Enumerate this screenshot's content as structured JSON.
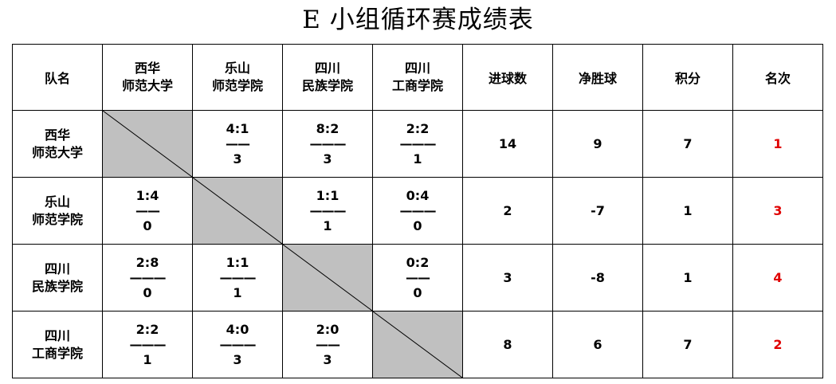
{
  "title": "E 小组循环赛成绩表",
  "header": {
    "team_label": "队名",
    "teams": [
      {
        "line1": "西华",
        "line2": "师范大学"
      },
      {
        "line1": "乐山",
        "line2": "师范学院"
      },
      {
        "line1": "四川",
        "line2": "民族学院"
      },
      {
        "line1": "四川",
        "line2": "工商学院"
      }
    ],
    "goals": "进球数",
    "net": "净胜球",
    "points": "积分",
    "rank": "名次"
  },
  "rows": [
    {
      "team": {
        "line1": "西华",
        "line2": "师范大学"
      },
      "results": [
        null,
        {
          "score": "4:1",
          "dash": "——",
          "pts": "3"
        },
        {
          "score": "8:2",
          "dash": "———",
          "pts": "3"
        },
        {
          "score": "2:2",
          "dash": "———",
          "pts": "1"
        }
      ],
      "goals": "14",
      "net": "9",
      "points": "7",
      "rank": "1"
    },
    {
      "team": {
        "line1": "乐山",
        "line2": "师范学院"
      },
      "results": [
        {
          "score": "1:4",
          "dash": "——",
          "pts": "0"
        },
        null,
        {
          "score": "1:1",
          "dash": "———",
          "pts": "1"
        },
        {
          "score": "0:4",
          "dash": "———",
          "pts": "0"
        }
      ],
      "goals": "2",
      "net": "-7",
      "points": "1",
      "rank": "3"
    },
    {
      "team": {
        "line1": "四川",
        "line2": "民族学院"
      },
      "results": [
        {
          "score": "2:8",
          "dash": "———",
          "pts": "0"
        },
        {
          "score": "1:1",
          "dash": "———",
          "pts": "1"
        },
        null,
        {
          "score": "0:2",
          "dash": "——",
          "pts": "0"
        }
      ],
      "goals": "3",
      "net": "-8",
      "points": "1",
      "rank": "4"
    },
    {
      "team": {
        "line1": "四川",
        "line2": "工商学院"
      },
      "results": [
        {
          "score": "2:2",
          "dash": "———",
          "pts": "1"
        },
        {
          "score": "4:0",
          "dash": "———",
          "pts": "3"
        },
        {
          "score": "2:0",
          "dash": "——",
          "pts": "3"
        },
        null
      ],
      "goals": "8",
      "net": "6",
      "points": "7",
      "rank": "2"
    }
  ],
  "colors": {
    "diagonal_fill": "#c0c0c0",
    "rank_text": "#e00000"
  }
}
